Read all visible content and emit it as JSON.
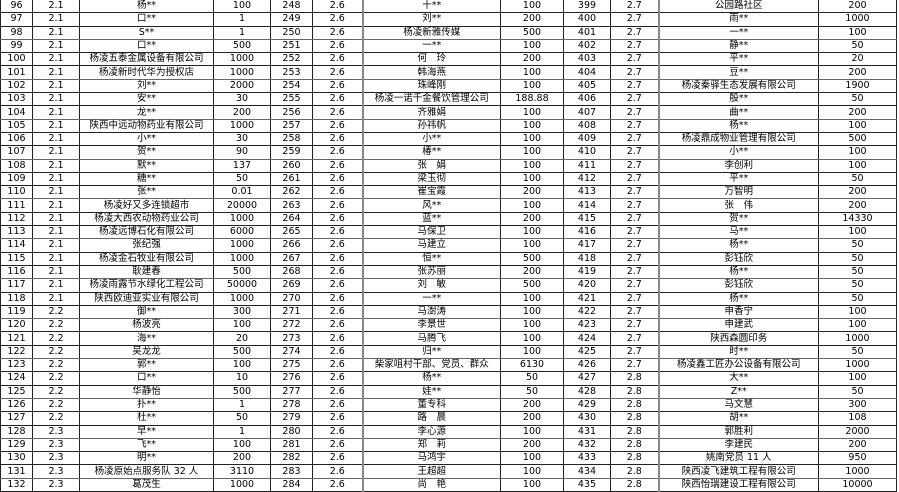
{
  "table": {
    "rows": [
      [
        "96",
        "2.1",
        "杨**",
        "100",
        "248",
        "2.6",
        "十**",
        "100",
        "399",
        "2.7",
        "公园路社区",
        "200"
      ],
      [
        "97",
        "2.1",
        "口**",
        "1",
        "249",
        "2.6",
        "刘**",
        "200",
        "400",
        "2.7",
        "雨**",
        "1000"
      ],
      [
        "98",
        "2.1",
        "S**",
        "1",
        "250",
        "2.6",
        "杨凌新雅传媒",
        "500",
        "401",
        "2.7",
        "一**",
        "100"
      ],
      [
        "99",
        "2.1",
        "口**",
        "500",
        "251",
        "2.6",
        "一**",
        "100",
        "402",
        "2.7",
        "静**",
        "50"
      ],
      [
        "100",
        "2.1",
        "杨凌五泰金属设备有限公司",
        "1000",
        "252",
        "2.6",
        "何　玲",
        "200",
        "403",
        "2.7",
        "平**",
        "20"
      ],
      [
        "101",
        "2.1",
        "杨凌新时代华为授权店",
        "1000",
        "253",
        "2.6",
        "韩海燕",
        "100",
        "404",
        "2.7",
        "豆**",
        "200"
      ],
      [
        "102",
        "2.1",
        "刘**",
        "2000",
        "254",
        "2.6",
        "珠峰刚",
        "100",
        "405",
        "2.7",
        "杨凌秦驿生态发展有限公司",
        "1900"
      ],
      [
        "103",
        "2.1",
        "安**",
        "30",
        "255",
        "2.6",
        "杨凌一诺千金餐饮管理公司",
        "188.88",
        "406",
        "2.7",
        "殷**",
        "50"
      ],
      [
        "104",
        "2.1",
        "龙**",
        "200",
        "256",
        "2.6",
        "齐雅娟",
        "100",
        "407",
        "2.7",
        "曲**",
        "200"
      ],
      [
        "105",
        "2.1",
        "陕西中远动物药业有限公司",
        "1000",
        "257",
        "2.6",
        "孙祎帆",
        "100",
        "408",
        "2.7",
        "杨**",
        "100"
      ],
      [
        "106",
        "2.1",
        "小**",
        "30",
        "258",
        "2.6",
        "小**",
        "100",
        "409",
        "2.7",
        "杨凌鼎成物业管理有限公司",
        "500"
      ],
      [
        "107",
        "2.1",
        "贺**",
        "90",
        "259",
        "2.6",
        "椿**",
        "100",
        "410",
        "2.7",
        "小**",
        "100"
      ],
      [
        "108",
        "2.1",
        "默**",
        "137",
        "260",
        "2.6",
        "张　娟",
        "100",
        "411",
        "2.7",
        "李创利",
        "100"
      ],
      [
        "109",
        "2.1",
        "糖**",
        "50",
        "261",
        "2.6",
        "梁玉彻",
        "100",
        "412",
        "2.7",
        "平**",
        "50"
      ],
      [
        "110",
        "2.1",
        "张**",
        "0.01",
        "262",
        "2.6",
        "崔宝霞",
        "200",
        "413",
        "2.7",
        "万智明",
        "200"
      ],
      [
        "111",
        "2.1",
        "杨凌好又多连锁超市",
        "20000",
        "263",
        "2.6",
        "风**",
        "100",
        "414",
        "2.7",
        "张　伟",
        "200"
      ],
      [
        "112",
        "2.1",
        "杨凌大西农动物药业公司",
        "1000",
        "264",
        "2.6",
        "蓝**",
        "200",
        "415",
        "2.7",
        "贺**",
        "14330"
      ],
      [
        "113",
        "2.1",
        "杨凌远博石化有限公司",
        "6000",
        "265",
        "2.6",
        "马保卫",
        "100",
        "416",
        "2.7",
        "马**",
        "100"
      ],
      [
        "114",
        "2.1",
        "张纪强",
        "1000",
        "266",
        "2.6",
        "马建立",
        "100",
        "417",
        "2.7",
        "杨**",
        "50"
      ],
      [
        "115",
        "2.1",
        "杨凌金石牧业有限公司",
        "1000",
        "267",
        "2.6",
        "恒**",
        "500",
        "418",
        "2.7",
        "彭钰欣",
        "50"
      ],
      [
        "116",
        "2.1",
        "耿建春",
        "500",
        "268",
        "2.6",
        "张苏丽",
        "200",
        "419",
        "2.7",
        "杨**",
        "50"
      ],
      [
        "117",
        "2.1",
        "杨凌雨露节水绿化工程公司",
        "50000",
        "269",
        "2.6",
        "刘　敏",
        "500",
        "420",
        "2.7",
        "彭钰欣",
        "50"
      ],
      [
        "118",
        "2.1",
        "陕西欧迪亚实业有限公司",
        "1000",
        "270",
        "2.6",
        "一**",
        "100",
        "421",
        "2.7",
        "杨**",
        "50"
      ],
      [
        "119",
        "2.2",
        "御**",
        "300",
        "271",
        "2.6",
        "马澍涛",
        "100",
        "422",
        "2.7",
        "申香宁",
        "100"
      ],
      [
        "120",
        "2.2",
        "杨波亮",
        "100",
        "272",
        "2.6",
        "李景世",
        "100",
        "423",
        "2.7",
        "申建武",
        "100"
      ],
      [
        "121",
        "2.2",
        "海**",
        "20",
        "273",
        "2.6",
        "马腾飞",
        "100",
        "424",
        "2.7",
        "陕西森圆印务",
        "1000"
      ],
      [
        "122",
        "2.2",
        "吴龙龙",
        "500",
        "274",
        "2.6",
        "归**",
        "100",
        "425",
        "2.7",
        "时**",
        "50"
      ],
      [
        "123",
        "2.2",
        "郭**",
        "100",
        "275",
        "2.6",
        "柴家咀村干部、党员、群众",
        "6130",
        "426",
        "2.7",
        "杨凌鑫工匠办公设备有限公司",
        "1000"
      ],
      [
        "124",
        "2.2",
        "口**",
        "10",
        "276",
        "2.6",
        "杨**",
        "50",
        "427",
        "2.8",
        "大**",
        "100"
      ],
      [
        "125",
        "2.2",
        "华静怡",
        "500",
        "277",
        "2.6",
        "娃**",
        "50",
        "428",
        "2.8",
        "Z**",
        "50"
      ],
      [
        "126",
        "2.2",
        "扑**",
        "1",
        "278",
        "2.6",
        "董专科",
        "200",
        "429",
        "2.8",
        "马文慧",
        "300"
      ],
      [
        "127",
        "2.2",
        "杜**",
        "50",
        "279",
        "2.6",
        "路　晨",
        "200",
        "430",
        "2.8",
        "胡**",
        "108"
      ],
      [
        "128",
        "2.3",
        "早**",
        "1",
        "280",
        "2.6",
        "李心源",
        "100",
        "431",
        "2.8",
        "郭胜利",
        "2000"
      ],
      [
        "129",
        "2.3",
        "飞**",
        "100",
        "281",
        "2.6",
        "郑　莉",
        "200",
        "432",
        "2.8",
        "李建民",
        "200"
      ],
      [
        "130",
        "2.3",
        "明**",
        "200",
        "282",
        "2.6",
        "马鸿宇",
        "100",
        "433",
        "2.8",
        "姚南党员 11 人",
        "950"
      ],
      [
        "131",
        "2.3",
        "杨凌原始点服务队 32 人",
        "3110",
        "283",
        "2.6",
        "王超超",
        "100",
        "434",
        "2.8",
        "陕西凌飞建筑工程有限公司",
        "1000"
      ],
      [
        "132",
        "2.3",
        "葛茂生",
        "1000",
        "284",
        "2.6",
        "尚　艳",
        "100",
        "435",
        "2.8",
        "陕西怡瑞建设工程有限公司",
        "10000"
      ]
    ]
  }
}
